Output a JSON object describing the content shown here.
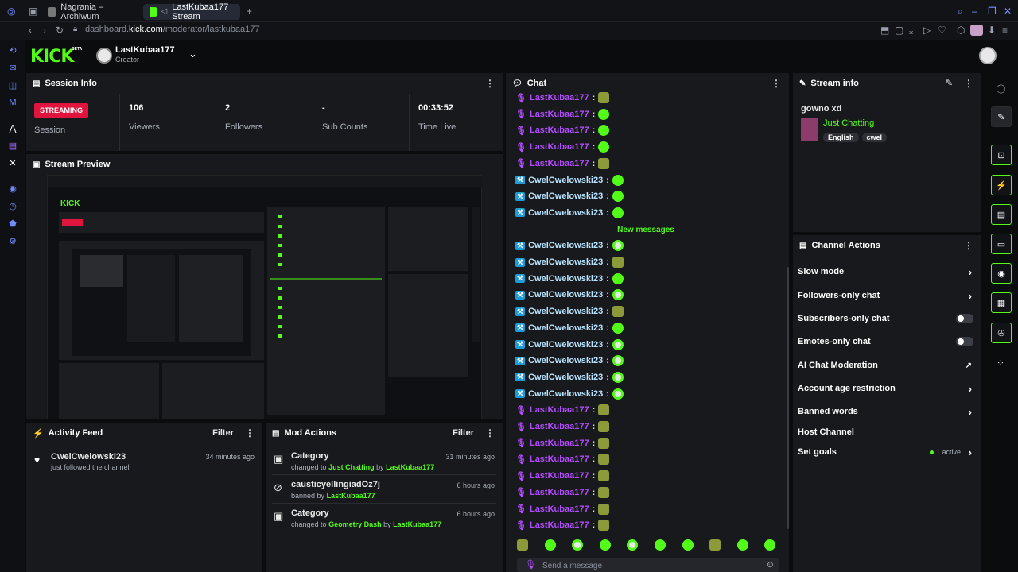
{
  "browser": {
    "tabs": [
      {
        "label": "Nagrania – Archiwum"
      },
      {
        "label": "LastKubaa177 Stream"
      }
    ],
    "url_prefix": "dashboard.",
    "url_domain": "kick.com",
    "url_path": "/moderator/lastkubaa177"
  },
  "header": {
    "logo": "KICK",
    "logo_badge": "BETA",
    "channel_name": "LastKubaa177",
    "channel_role": "Creator"
  },
  "session": {
    "title": "Session Info",
    "status_badge": "STREAMING",
    "status_label": "Session",
    "stats": [
      {
        "value": "106",
        "label": "Viewers"
      },
      {
        "value": "2",
        "label": "Followers"
      },
      {
        "value": "-",
        "label": "Sub Counts"
      },
      {
        "value": "00:33:52",
        "label": "Time Live"
      }
    ]
  },
  "preview": {
    "title": "Stream Preview"
  },
  "activity": {
    "title": "Activity Feed",
    "filter": "Filter",
    "items": [
      {
        "user": "CwelCwelowski23",
        "text": "just followed the channel",
        "time": "34 minutes ago"
      }
    ]
  },
  "mod_actions": {
    "title": "Mod Actions",
    "filter": "Filter",
    "items": [
      {
        "title": "Category",
        "pre": "changed to",
        "target": "Just Chatting",
        "by": "by",
        "user": "LastKubaa177",
        "time": "31 minutes ago"
      },
      {
        "title": "causticyellingiadOz7j",
        "pre": "banned by",
        "target": "",
        "by": "",
        "user": "LastKubaa177",
        "time": "6 hours ago"
      },
      {
        "title": "Category",
        "pre": "changed to",
        "target": "Geometry Dash",
        "by": "by",
        "user": "LastKubaa177",
        "time": "6 hours ago"
      }
    ]
  },
  "chat": {
    "title": "Chat",
    "new_messages": "New messages",
    "placeholder": "Send a message",
    "lines": [
      {
        "user": "LastKubaa177",
        "kind": "mod",
        "emote": "sq"
      },
      {
        "user": "LastKubaa177",
        "kind": "mod",
        "emote": "g"
      },
      {
        "user": "LastKubaa177",
        "kind": "mod",
        "emote": "g"
      },
      {
        "user": "LastKubaa177",
        "kind": "mod",
        "emote": "g"
      },
      {
        "user": "LastKubaa177",
        "kind": "mod",
        "emote": "sq"
      },
      {
        "user": "CwelCwelowski23",
        "kind": "viewer",
        "emote": "g"
      },
      {
        "user": "CwelCwelowski23",
        "kind": "viewer",
        "emote": "g"
      },
      {
        "user": "CwelCwelowski23",
        "kind": "viewer",
        "emote": "g"
      },
      {
        "user": "CwelCwelowski23",
        "kind": "viewer",
        "emote": "wh"
      },
      {
        "user": "CwelCwelowski23",
        "kind": "viewer",
        "emote": "sq"
      },
      {
        "user": "CwelCwelowski23",
        "kind": "viewer",
        "emote": "g"
      },
      {
        "user": "CwelCwelowski23",
        "kind": "viewer",
        "emote": "wh"
      },
      {
        "user": "CwelCwelowski23",
        "kind": "viewer",
        "emote": "sq"
      },
      {
        "user": "CwelCwelowski23",
        "kind": "viewer",
        "emote": "g"
      },
      {
        "user": "CwelCwelowski23",
        "kind": "viewer",
        "emote": "wh"
      },
      {
        "user": "CwelCwelowski23",
        "kind": "viewer",
        "emote": "wh"
      },
      {
        "user": "CwelCwelowski23",
        "kind": "viewer",
        "emote": "wh"
      },
      {
        "user": "CwelCwelowski23",
        "kind": "viewer",
        "emote": "wh"
      },
      {
        "user": "LastKubaa177",
        "kind": "mod",
        "emote": "sq"
      },
      {
        "user": "LastKubaa177",
        "kind": "mod",
        "emote": "sq"
      },
      {
        "user": "LastKubaa177",
        "kind": "mod",
        "emote": "sq"
      },
      {
        "user": "LastKubaa177",
        "kind": "mod",
        "emote": "sq"
      },
      {
        "user": "LastKubaa177",
        "kind": "mod",
        "emote": "sq"
      },
      {
        "user": "LastKubaa177",
        "kind": "mod",
        "emote": "sq"
      },
      {
        "user": "LastKubaa177",
        "kind": "mod",
        "emote": "sq"
      },
      {
        "user": "LastKubaa177",
        "kind": "mod",
        "emote": "sq"
      }
    ]
  },
  "stream_info": {
    "title": "Stream info",
    "stream_title": "gowno xd",
    "category": "Just Chatting",
    "tags": [
      "English",
      "cwel"
    ]
  },
  "channel_actions": {
    "title": "Channel Actions",
    "items": [
      {
        "label": "Slow mode",
        "control": "chevron"
      },
      {
        "label": "Followers-only chat",
        "control": "chevron"
      },
      {
        "label": "Subscribers-only chat",
        "control": "toggle"
      },
      {
        "label": "Emotes-only chat",
        "control": "toggle"
      },
      {
        "label": "AI Chat Moderation",
        "control": "external"
      },
      {
        "label": "Account age restriction",
        "control": "chevron"
      },
      {
        "label": "Banned words",
        "control": "chevron"
      },
      {
        "label": "Host Channel",
        "control": "none"
      },
      {
        "label": "Set goals",
        "control": "chevron",
        "badge": "1 active"
      }
    ]
  },
  "colors": {
    "accent": "#53fc18",
    "mod": "#b44cff",
    "badge_red": "#e0143c",
    "viewer_badge": "#1d9bd7"
  }
}
